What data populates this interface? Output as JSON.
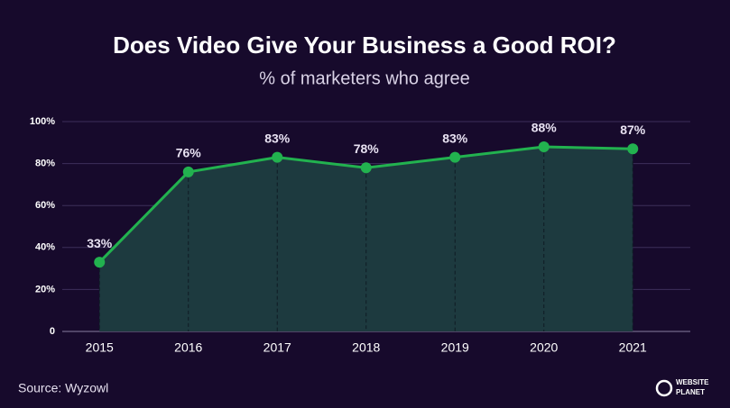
{
  "chart_data": {
    "type": "line",
    "title": "Does Video Give Your Business a Good ROI?",
    "subtitle": "% of marketers who agree",
    "categories": [
      "2015",
      "2016",
      "2017",
      "2018",
      "2019",
      "2020",
      "2021"
    ],
    "values": [
      33,
      76,
      83,
      78,
      83,
      88,
      87
    ],
    "value_labels": [
      "33%",
      "76%",
      "83%",
      "78%",
      "83%",
      "88%",
      "87%"
    ],
    "color": "#22b24f",
    "area_color": "#1d3a3f",
    "ylim": [
      0,
      100
    ],
    "yticks": [
      0,
      {
        "value": 20,
        "label": "20%"
      },
      {
        "value": 40,
        "label": "40%"
      },
      {
        "value": 60,
        "label": "60%"
      },
      {
        "value": 80,
        "label": "80%"
      },
      {
        "value": 100,
        "label": "100%"
      }
    ],
    "grid": true,
    "source": "Source: Wyzowl",
    "brand": [
      "WEBSITE",
      "PLANET"
    ]
  }
}
